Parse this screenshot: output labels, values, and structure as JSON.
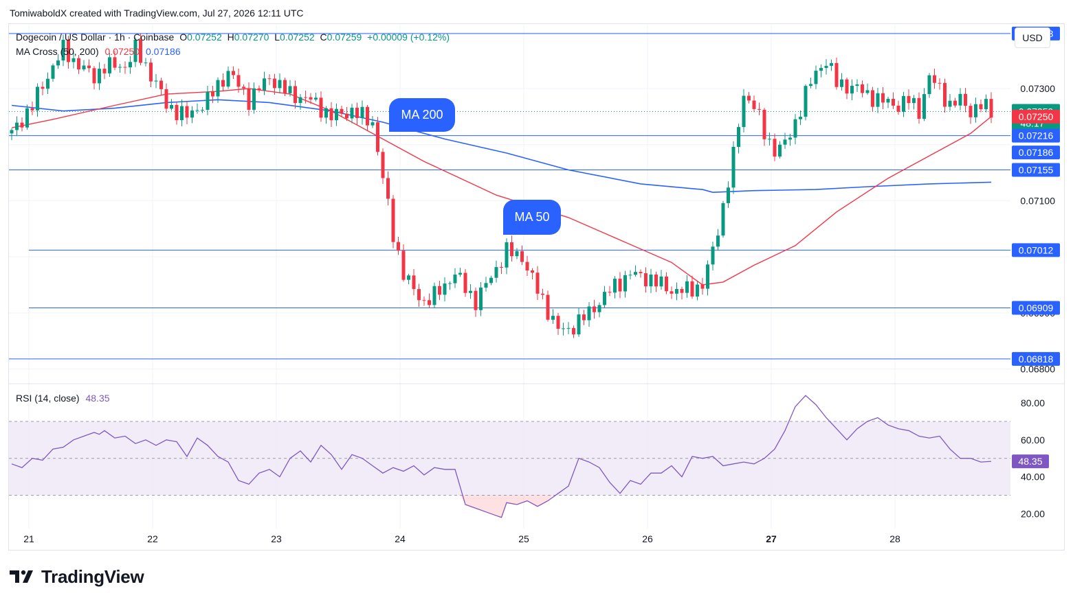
{
  "header": {
    "credit": "TomiwaboldX created with TradingView.com, Jul 27, 2026 12:11 UTC"
  },
  "legend": {
    "symbol": "Dogecoin / US Dollar · 1h · Coinbase",
    "open_label": "O",
    "open": "0.07252",
    "high_label": "H",
    "high": "0.07270",
    "low_label": "L",
    "low": "0.07252",
    "close_label": "C",
    "close": "0.07259",
    "change": "+0.00009 (+0.12%)",
    "ma_label": "MA Cross (50, 200)",
    "ma50_value": "0.07250",
    "ma200_value": "0.07186",
    "rsi_label": "RSI (14, close)",
    "rsi_value": "48.35"
  },
  "currency": "USD",
  "callouts": {
    "ma200": "MA 200",
    "ma50": "MA 50"
  },
  "brand": "TradingView",
  "colors": {
    "up": "#089981",
    "down": "#f23645",
    "ma50": "#f23645",
    "ma200": "#2962ff",
    "hline": "#2962ff",
    "rsi": "#7e57c2",
    "rsi_band": "#ede7f6"
  },
  "chart_data": {
    "type": "candlestick",
    "title": "Dogecoin / US Dollar · 1h · Coinbase",
    "x_ticks": [
      "21",
      "22",
      "23",
      "24",
      "25",
      "26",
      "27",
      "28"
    ],
    "x_ticks_bold": "27",
    "price_ticks": [
      "0.07300",
      "0.07100",
      "0.06900",
      "0.06800"
    ],
    "ylim": [
      0.06775,
      0.07415
    ],
    "horizontal_levels": [
      "0.07398",
      "0.07216",
      "0.07155",
      "0.07012",
      "0.06909",
      "0.06818"
    ],
    "price_labels": [
      {
        "text": "0.07398",
        "kind": "level",
        "value": 0.07398
      },
      {
        "text": "0.07259",
        "subtext": "48:17",
        "kind": "current",
        "value": 0.07259
      },
      {
        "text": "0.07250",
        "kind": "ma50",
        "value": 0.0725
      },
      {
        "text": "0.07216",
        "kind": "level",
        "value": 0.07216
      },
      {
        "text": "0.07186",
        "kind": "ma200",
        "value": 0.07186
      },
      {
        "text": "0.07155",
        "kind": "level",
        "value": 0.07155
      },
      {
        "text": "0.07012",
        "kind": "level",
        "value": 0.07012
      },
      {
        "text": "0.06909",
        "kind": "level",
        "value": 0.06909
      },
      {
        "text": "0.06818",
        "kind": "level",
        "value": 0.06818
      }
    ],
    "candle_anchors": [
      [
        0,
        0.0722
      ],
      [
        4,
        0.0727
      ],
      [
        8,
        0.0734
      ],
      [
        10,
        0.0737
      ],
      [
        12,
        0.0735
      ],
      [
        16,
        0.0732
      ],
      [
        18,
        0.0734
      ],
      [
        22,
        0.0734
      ],
      [
        24,
        0.0737
      ],
      [
        28,
        0.0731
      ],
      [
        30,
        0.0727
      ],
      [
        34,
        0.0725
      ],
      [
        38,
        0.0728
      ],
      [
        42,
        0.0733
      ],
      [
        46,
        0.0728
      ],
      [
        50,
        0.0732
      ],
      [
        54,
        0.0729
      ],
      [
        58,
        0.0728
      ],
      [
        62,
        0.0725
      ],
      [
        66,
        0.0726
      ],
      [
        70,
        0.0724
      ],
      [
        72,
        0.0714
      ],
      [
        74,
        0.0704
      ],
      [
        76,
        0.0697
      ],
      [
        78,
        0.0694
      ],
      [
        80,
        0.0692
      ],
      [
        82,
        0.0693
      ],
      [
        86,
        0.0697
      ],
      [
        90,
        0.0692
      ],
      [
        92,
        0.0695
      ],
      [
        96,
        0.0701
      ],
      [
        99,
        0.07
      ],
      [
        102,
        0.0694
      ],
      [
        106,
        0.0687
      ],
      [
        108,
        0.0687
      ],
      [
        112,
        0.069
      ],
      [
        116,
        0.0694
      ],
      [
        120,
        0.0697
      ],
      [
        124,
        0.0696
      ],
      [
        128,
        0.0694
      ],
      [
        131,
        0.0694
      ],
      [
        134,
        0.0695
      ],
      [
        136,
        0.0701
      ],
      [
        138,
        0.0709
      ],
      [
        140,
        0.0718
      ],
      [
        142,
        0.0729
      ],
      [
        144,
        0.0727
      ],
      [
        146,
        0.0722
      ],
      [
        148,
        0.0719
      ],
      [
        150,
        0.072
      ],
      [
        152,
        0.0724
      ],
      [
        154,
        0.0729
      ],
      [
        156,
        0.0733
      ],
      [
        158,
        0.0735
      ],
      [
        160,
        0.0731
      ],
      [
        164,
        0.073
      ],
      [
        168,
        0.0728
      ],
      [
        172,
        0.0727
      ],
      [
        174,
        0.0728
      ],
      [
        176,
        0.0726
      ],
      [
        178,
        0.0732
      ],
      [
        180,
        0.073
      ],
      [
        182,
        0.0727
      ],
      [
        184,
        0.0728
      ],
      [
        186,
        0.0726
      ],
      [
        188,
        0.0727
      ],
      [
        190,
        0.0726
      ]
    ],
    "ma50": [
      [
        0,
        0.0723
      ],
      [
        8,
        0.07245
      ],
      [
        20,
        0.0727
      ],
      [
        30,
        0.0729
      ],
      [
        40,
        0.07295
      ],
      [
        46,
        0.073
      ],
      [
        54,
        0.0729
      ],
      [
        62,
        0.0726
      ],
      [
        70,
        0.0722
      ],
      [
        80,
        0.0717
      ],
      [
        94,
        0.0711
      ],
      [
        108,
        0.0707
      ],
      [
        118,
        0.0703
      ],
      [
        128,
        0.0699
      ],
      [
        134,
        0.0695
      ],
      [
        138,
        0.06955
      ],
      [
        144,
        0.06985
      ],
      [
        152,
        0.0702
      ],
      [
        160,
        0.0708
      ],
      [
        170,
        0.0714
      ],
      [
        180,
        0.0719
      ],
      [
        186,
        0.0722
      ],
      [
        190,
        0.0725
      ]
    ],
    "ma200": [
      [
        0,
        0.0727
      ],
      [
        10,
        0.0726
      ],
      [
        20,
        0.07265
      ],
      [
        30,
        0.07275
      ],
      [
        40,
        0.0728
      ],
      [
        50,
        0.07275
      ],
      [
        62,
        0.0726
      ],
      [
        72,
        0.0724
      ],
      [
        84,
        0.0721
      ],
      [
        96,
        0.07185
      ],
      [
        108,
        0.07155
      ],
      [
        122,
        0.0713
      ],
      [
        134,
        0.0712
      ],
      [
        136,
        0.07115
      ],
      [
        144,
        0.07118
      ],
      [
        156,
        0.0712
      ],
      [
        166,
        0.07125
      ],
      [
        178,
        0.0713
      ],
      [
        190,
        0.07133
      ]
    ],
    "rsi": {
      "ylim": [
        12,
        90
      ],
      "ticks": [
        "80.00",
        "60.00",
        "40.00",
        "20.00"
      ],
      "overbought": 70,
      "mid": 50,
      "oversold": 30,
      "current": "48.35",
      "points": [
        [
          0,
          47
        ],
        [
          2,
          45
        ],
        [
          4,
          50
        ],
        [
          6,
          49
        ],
        [
          8,
          55
        ],
        [
          10,
          56
        ],
        [
          12,
          60
        ],
        [
          14,
          62
        ],
        [
          16,
          64
        ],
        [
          17,
          63
        ],
        [
          18,
          65
        ],
        [
          20,
          61
        ],
        [
          22,
          62
        ],
        [
          24,
          58
        ],
        [
          26,
          60
        ],
        [
          28,
          57
        ],
        [
          30,
          60
        ],
        [
          32,
          59
        ],
        [
          34,
          51
        ],
        [
          36,
          61
        ],
        [
          38,
          57
        ],
        [
          40,
          51
        ],
        [
          42,
          48
        ],
        [
          44,
          38
        ],
        [
          46,
          36
        ],
        [
          48,
          42
        ],
        [
          50,
          44
        ],
        [
          52,
          40
        ],
        [
          54,
          50
        ],
        [
          56,
          54
        ],
        [
          58,
          48
        ],
        [
          60,
          57
        ],
        [
          62,
          52
        ],
        [
          64,
          44
        ],
        [
          66,
          52
        ],
        [
          68,
          50
        ],
        [
          70,
          46
        ],
        [
          72,
          42
        ],
        [
          74,
          45
        ],
        [
          76,
          43
        ],
        [
          78,
          46
        ],
        [
          80,
          41
        ],
        [
          82,
          45
        ],
        [
          84,
          44
        ],
        [
          86,
          44
        ],
        [
          88,
          25
        ],
        [
          90,
          23
        ],
        [
          92,
          21
        ],
        [
          94,
          19
        ],
        [
          95,
          18
        ],
        [
          96,
          26
        ],
        [
          98,
          25
        ],
        [
          100,
          27
        ],
        [
          102,
          24
        ],
        [
          104,
          27
        ],
        [
          106,
          31
        ],
        [
          108,
          35
        ],
        [
          110,
          50
        ],
        [
          112,
          48
        ],
        [
          114,
          45
        ],
        [
          116,
          37
        ],
        [
          118,
          31
        ],
        [
          120,
          38
        ],
        [
          122,
          36
        ],
        [
          124,
          42
        ],
        [
          126,
          42
        ],
        [
          128,
          46
        ],
        [
          130,
          40
        ],
        [
          132,
          51
        ],
        [
          134,
          50
        ],
        [
          136,
          51
        ],
        [
          138,
          46
        ],
        [
          140,
          47
        ],
        [
          142,
          48
        ],
        [
          144,
          47
        ],
        [
          146,
          50
        ],
        [
          148,
          55
        ],
        [
          150,
          65
        ],
        [
          152,
          78
        ],
        [
          154,
          84
        ],
        [
          156,
          79
        ],
        [
          158,
          72
        ],
        [
          160,
          66
        ],
        [
          162,
          60
        ],
        [
          164,
          66
        ],
        [
          166,
          70
        ],
        [
          168,
          72
        ],
        [
          170,
          68
        ],
        [
          172,
          66
        ],
        [
          174,
          65
        ],
        [
          176,
          62
        ],
        [
          178,
          61
        ],
        [
          180,
          62
        ],
        [
          182,
          55
        ],
        [
          184,
          50
        ],
        [
          186,
          50
        ],
        [
          188,
          48
        ],
        [
          190,
          48.35
        ]
      ]
    }
  }
}
